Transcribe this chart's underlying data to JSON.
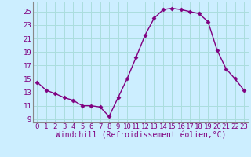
{
  "x": [
    0,
    1,
    2,
    3,
    4,
    5,
    6,
    7,
    8,
    9,
    10,
    11,
    12,
    13,
    14,
    15,
    16,
    17,
    18,
    19,
    20,
    21,
    22,
    23
  ],
  "y": [
    14.5,
    13.3,
    12.8,
    12.2,
    11.8,
    11.0,
    11.0,
    10.8,
    9.4,
    12.2,
    15.0,
    18.2,
    21.5,
    24.0,
    25.3,
    25.5,
    25.3,
    25.0,
    24.7,
    23.5,
    19.3,
    16.5,
    15.0,
    13.3
  ],
  "line_color": "#800080",
  "marker": "D",
  "markersize": 2.5,
  "linewidth": 1.0,
  "bg_color": "#cceeff",
  "grid_color": "#aadddd",
  "xlabel": "Windchill (Refroidissement éolien,°C)",
  "xlabel_fontsize": 7,
  "tick_fontsize": 6.5,
  "ylim": [
    8.5,
    26.5
  ],
  "xlim": [
    -0.5,
    23.5
  ],
  "yticks": [
    9,
    11,
    13,
    15,
    17,
    19,
    21,
    23,
    25
  ],
  "xticks": [
    0,
    1,
    2,
    3,
    4,
    5,
    6,
    7,
    8,
    9,
    10,
    11,
    12,
    13,
    14,
    15,
    16,
    17,
    18,
    19,
    20,
    21,
    22,
    23
  ]
}
